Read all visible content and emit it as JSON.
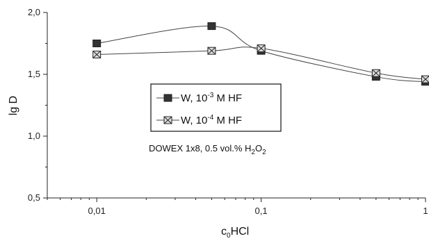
{
  "chart_data": {
    "type": "line",
    "x_scale": "log",
    "xlim": [
      0.005,
      1
    ],
    "ylim": [
      0.5,
      2.0
    ],
    "x_ticks": [
      0.01,
      0.1,
      1
    ],
    "x_tick_labels": [
      "0,01",
      "0,1",
      "1"
    ],
    "y_ticks": [
      0.5,
      1.0,
      1.5,
      2.0
    ],
    "y_tick_labels": [
      "0,5",
      "1,0",
      "1,5",
      "2,0"
    ],
    "ylabel": "lg D",
    "xlabel": {
      "main": "c",
      "sub": "0",
      "rest": "HCl"
    },
    "annotation": {
      "text": "DOWEX 1x8, 0.5 vol.% H",
      "sub1": "2",
      "mid": "O",
      "sub2": "2"
    },
    "legend_placement": "center-left",
    "series": [
      {
        "name": "W, 10-3 M HF",
        "legend": {
          "pre": "W, 10",
          "sup": "-3",
          "post": " M HF"
        },
        "marker": "filled-square",
        "x": [
          0.01,
          0.05,
          0.1,
          0.5,
          1
        ],
        "y": [
          1.75,
          1.89,
          1.69,
          1.48,
          1.44
        ]
      },
      {
        "name": "W, 10-4 M HF",
        "legend": {
          "pre": "W, 10",
          "sup": "-4",
          "post": " M HF"
        },
        "marker": "crossed-square",
        "x": [
          0.01,
          0.05,
          0.1,
          0.5,
          1
        ],
        "y": [
          1.66,
          1.69,
          1.71,
          1.51,
          1.46
        ]
      }
    ]
  }
}
